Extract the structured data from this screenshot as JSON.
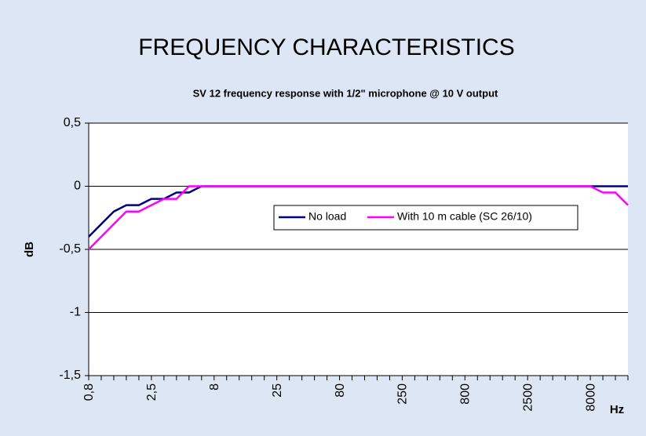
{
  "chart_data": {
    "type": "line",
    "title": "FREQUENCY CHARACTERISTICS",
    "subtitle": "SV 12 frequency response with 1/2\" microphone @ 10 V output",
    "y_label": "dB",
    "x_label": "Hz",
    "categories": [
      "0,8",
      null,
      null,
      null,
      null,
      "2,5",
      null,
      null,
      null,
      null,
      "8",
      null,
      null,
      null,
      null,
      "25",
      null,
      null,
      null,
      null,
      "80",
      null,
      null,
      null,
      null,
      "250",
      null,
      null,
      null,
      null,
      "800",
      null,
      null,
      null,
      null,
      "2500",
      null,
      null,
      null,
      null,
      "8000",
      null,
      null,
      null
    ],
    "series": [
      {
        "name": "No load",
        "color": "#000080",
        "values": [
          -0.4,
          -0.3,
          -0.2,
          -0.15,
          -0.15,
          -0.1,
          -0.1,
          -0.05,
          -0.05,
          0,
          0,
          0,
          0,
          0,
          0,
          0,
          0,
          0,
          0,
          0,
          0,
          0,
          0,
          0,
          0,
          0,
          0,
          0,
          0,
          0,
          0,
          0,
          0,
          0,
          0,
          0,
          0,
          0,
          0,
          0,
          0,
          0,
          0,
          0
        ]
      },
      {
        "name": "With 10 m cable (SC 26/10)",
        "color": "#ff00ff",
        "values": [
          -0.5,
          -0.4,
          -0.3,
          -0.2,
          -0.2,
          -0.15,
          -0.1,
          -0.1,
          0,
          0,
          0,
          0,
          0,
          0,
          0,
          0,
          0,
          0,
          0,
          0,
          0,
          0,
          0,
          0,
          0,
          0,
          0,
          0,
          0,
          0,
          0,
          0,
          0,
          0,
          0,
          0,
          0,
          0,
          0,
          0,
          0,
          -0.05,
          -0.05,
          -0.15
        ]
      }
    ],
    "ylim": [
      -1.5,
      0.5
    ],
    "yticks": [
      {
        "value": 0.5,
        "label": "0,5"
      },
      0,
      {
        "value": -0.5,
        "label": "-0,5"
      },
      -1,
      {
        "value": -1.5,
        "label": "-1,5"
      }
    ],
    "grid": true,
    "legend": "center"
  }
}
